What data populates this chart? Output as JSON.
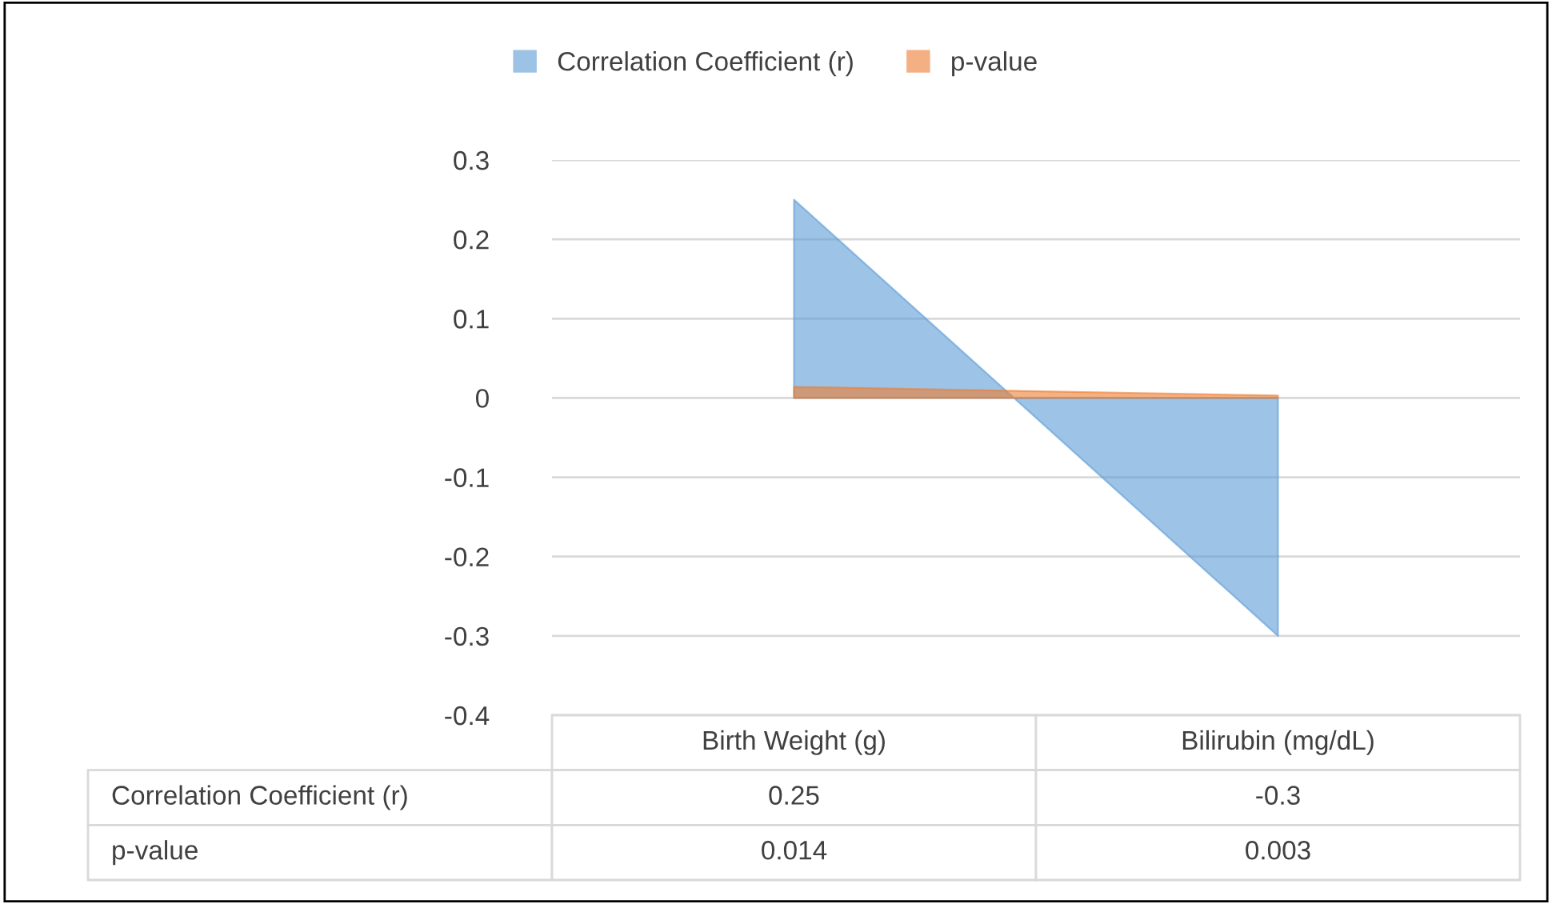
{
  "chart_data": {
    "type": "area",
    "categories": [
      "Birth Weight (g)",
      "Bilirubin (mg/dL)"
    ],
    "series": [
      {
        "name": "Correlation Coefficient (r)",
        "color": "#5b9bd5",
        "values": [
          0.25,
          -0.3
        ]
      },
      {
        "name": "p-value",
        "color": "#ed7d31",
        "values": [
          0.014,
          0.003
        ]
      }
    ],
    "ylim": [
      -0.4,
      0.3
    ],
    "yticks": [
      -0.4,
      -0.3,
      -0.2,
      -0.1,
      0,
      0.1,
      0.2,
      0.3
    ],
    "grid": "y",
    "legend": "top",
    "data_labels": true
  }
}
